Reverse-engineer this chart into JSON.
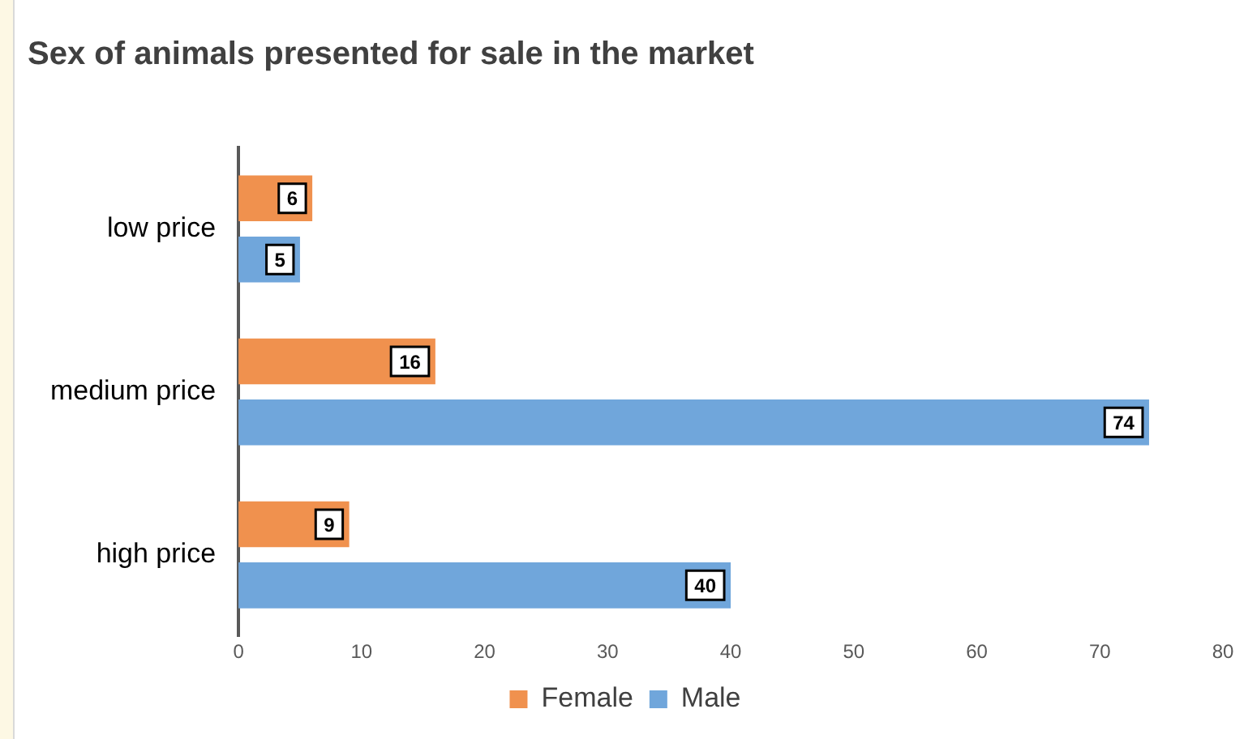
{
  "chart_data": {
    "type": "bar",
    "orientation": "horizontal",
    "title": "Sex of animals presented for sale in the market",
    "categories": [
      "low price",
      "medium price",
      "high price"
    ],
    "series": [
      {
        "name": "Female",
        "color": "#f0914e",
        "values": [
          6,
          16,
          9
        ]
      },
      {
        "name": "Male",
        "color": "#70a6db",
        "values": [
          5,
          74,
          40
        ]
      }
    ],
    "xlim": [
      0,
      80
    ],
    "xticks": [
      0,
      10,
      20,
      30,
      40,
      50,
      60,
      70,
      80
    ],
    "grid": false,
    "legend": "bottom",
    "data_labels": true
  }
}
